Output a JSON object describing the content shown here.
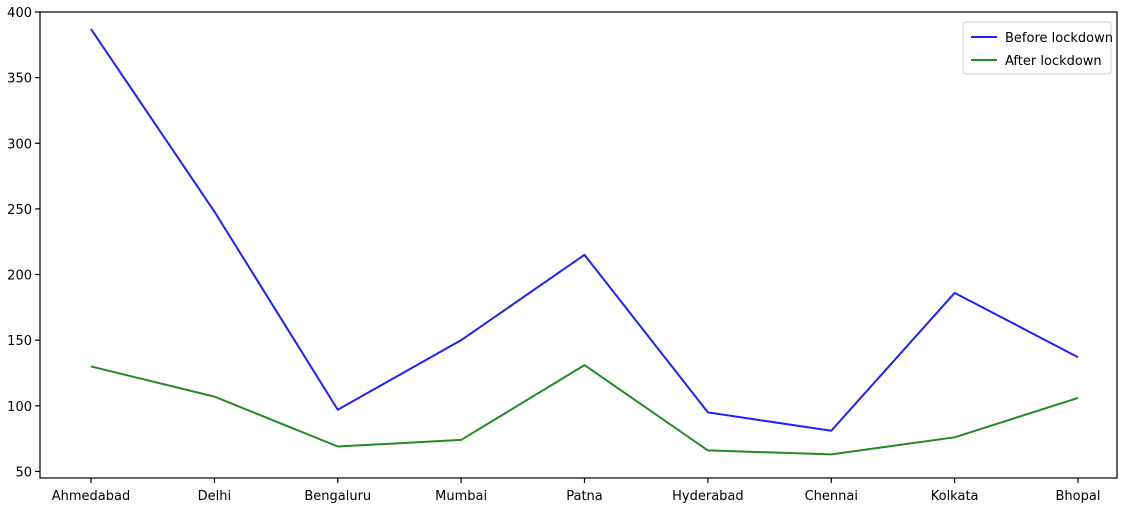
{
  "chart_data": {
    "type": "line",
    "title": "",
    "xlabel": "",
    "ylabel": "",
    "categories": [
      "Ahmedabad",
      "Delhi",
      "Bengaluru",
      "Mumbai",
      "Patna",
      "Hyderabad",
      "Chennai",
      "Kolkata",
      "Bhopal"
    ],
    "series": [
      {
        "name": "Before lockdown",
        "color": "#1f1fff",
        "values": [
          387,
          248,
          97,
          150,
          215,
          95,
          81,
          186,
          137
        ]
      },
      {
        "name": "After lockdown",
        "color": "#228B22",
        "values": [
          130,
          107,
          69,
          74,
          131,
          66,
          63,
          76,
          106
        ]
      }
    ],
    "ylim": [
      45,
      400
    ],
    "yticks": [
      50,
      100,
      150,
      200,
      250,
      300,
      350,
      400
    ],
    "grid": false,
    "legend": "top-right"
  }
}
